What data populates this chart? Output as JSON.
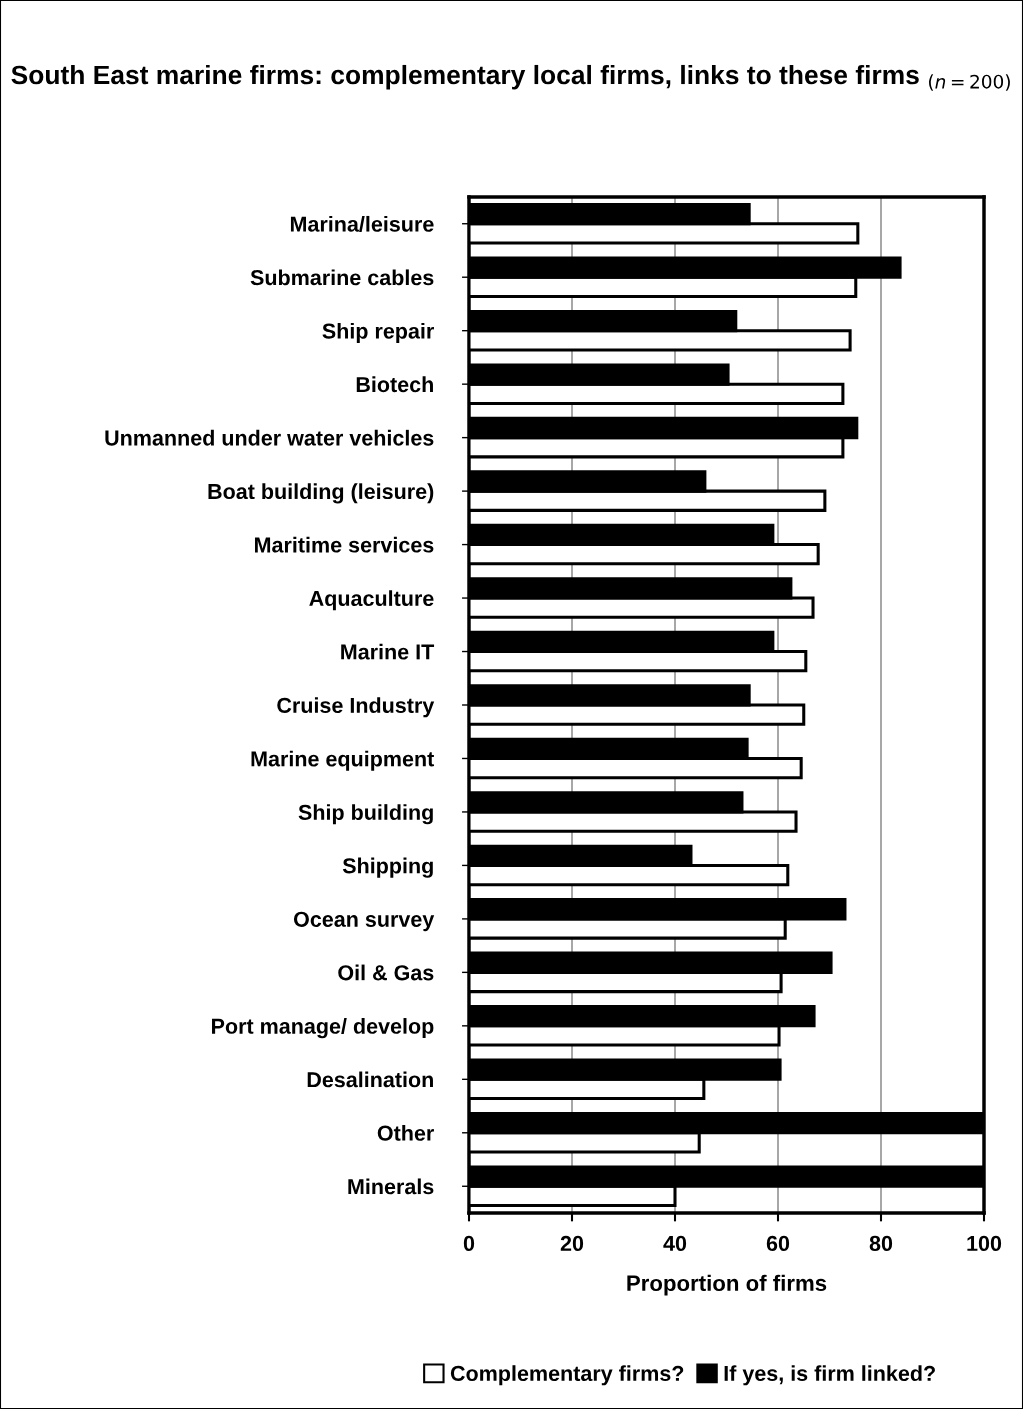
{
  "chart_data": {
    "type": "bar",
    "orientation": "horizontal",
    "title": "South East marine firms: complementary local firms, links to these firms $_{(n=200)}$",
    "xlabel": "Proportion of firms",
    "categories": [
      "Marina/leisure",
      "Submarine cables",
      "Ship repair",
      "Biotech",
      "Unmanned under water vehicles",
      "Boat building (leisure)",
      "Maritime services",
      "Aquaculture",
      "Marine IT",
      "Cruise Industry",
      "Marine equipment",
      "Ship building",
      "Shipping",
      "Ocean survey",
      "Oil & Gas",
      "Port manage/ develop",
      "Desalination",
      "Other",
      "Minerals"
    ],
    "series": [
      {
        "name": "Complementary firms?",
        "color": "#ffffff",
        "values": [
          75.5,
          75.1,
          74,
          72.6,
          72.6,
          69.1,
          67.8,
          66.8,
          65.4,
          65,
          64.5,
          63.5,
          61.9,
          61.4,
          60.6,
          60.2,
          45.6,
          44.7,
          40
        ]
      },
      {
        "name": "If yes, is firm linked?",
        "color": "#000000",
        "values": [
          54.4,
          83.7,
          51.8,
          50.3,
          75.3,
          45.8,
          59,
          62.5,
          59,
          54.4,
          54,
          53,
          43.1,
          73,
          70.3,
          67,
          60.4,
          100,
          100
        ]
      }
    ],
    "xlim": [
      0,
      100
    ],
    "xticks": [
      0,
      20,
      40,
      60,
      80,
      100
    ],
    "grid": "x",
    "legend": "bottom"
  }
}
